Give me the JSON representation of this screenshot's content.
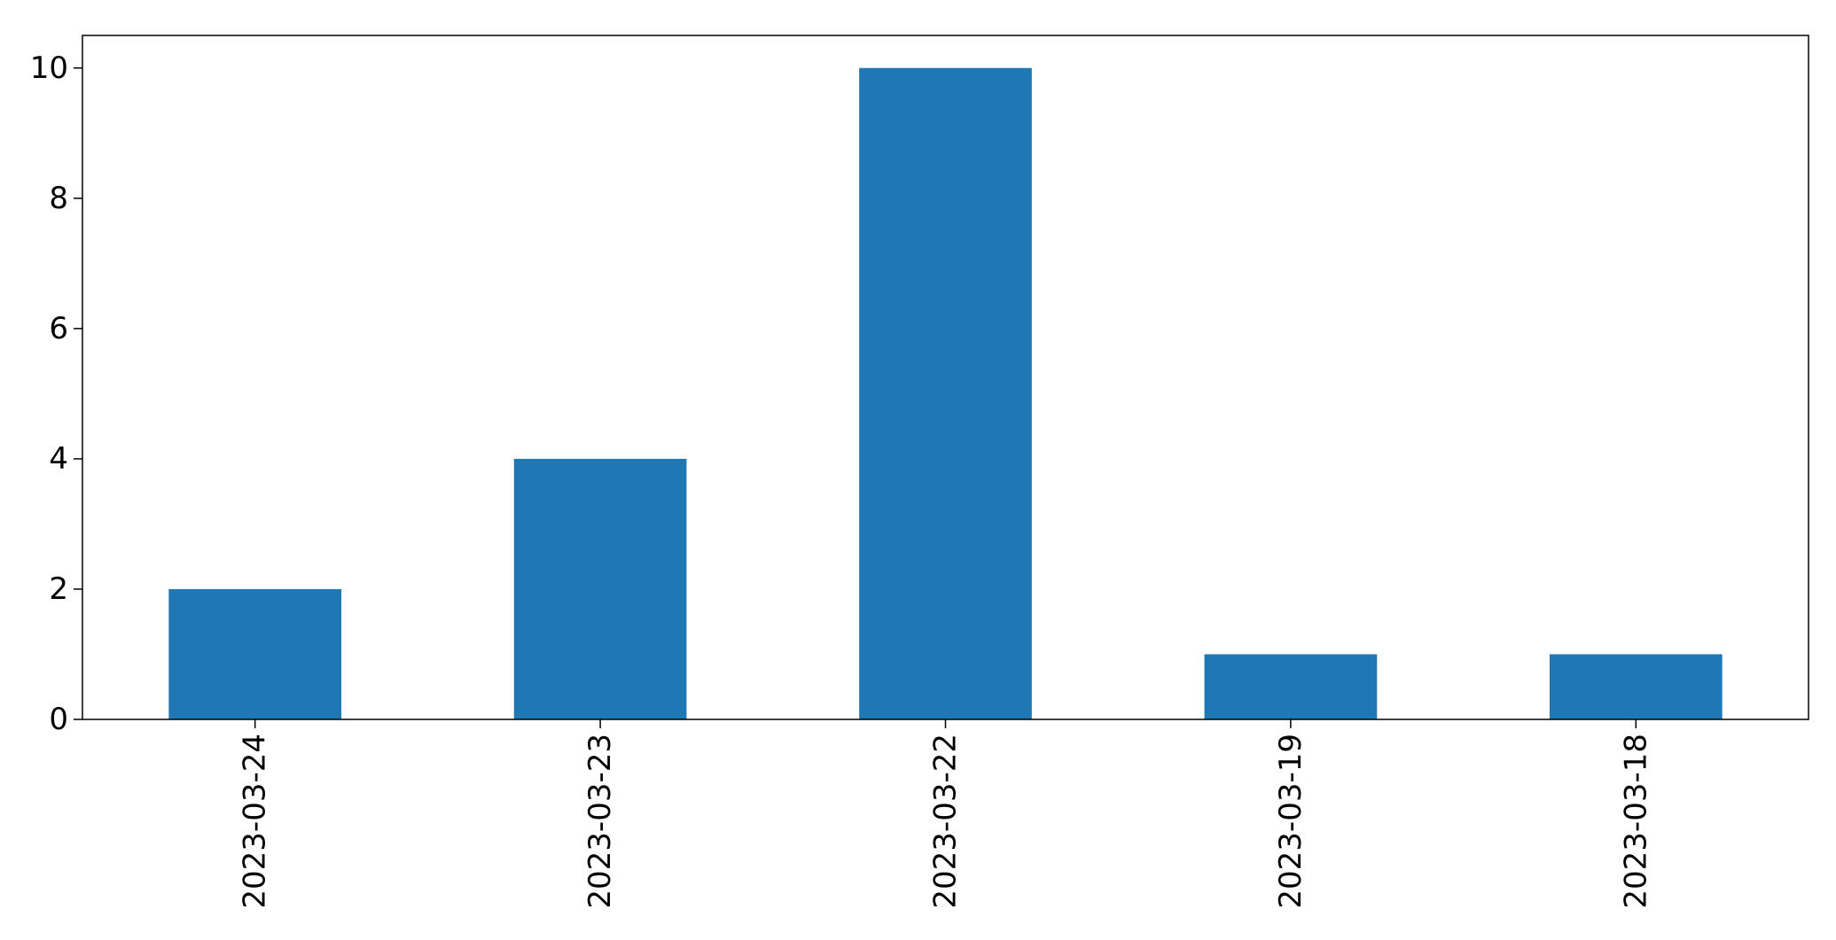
{
  "chart_data": {
    "type": "bar",
    "categories": [
      "2023-03-24",
      "2023-03-23",
      "2023-03-22",
      "2023-03-19",
      "2023-03-18"
    ],
    "values": [
      2,
      4,
      10,
      1,
      1
    ],
    "yticks": [
      0,
      2,
      4,
      6,
      8,
      10
    ],
    "ylim": [
      0,
      10.5
    ],
    "bar_color": "#1f77b4",
    "grid": false,
    "legend": "none"
  }
}
